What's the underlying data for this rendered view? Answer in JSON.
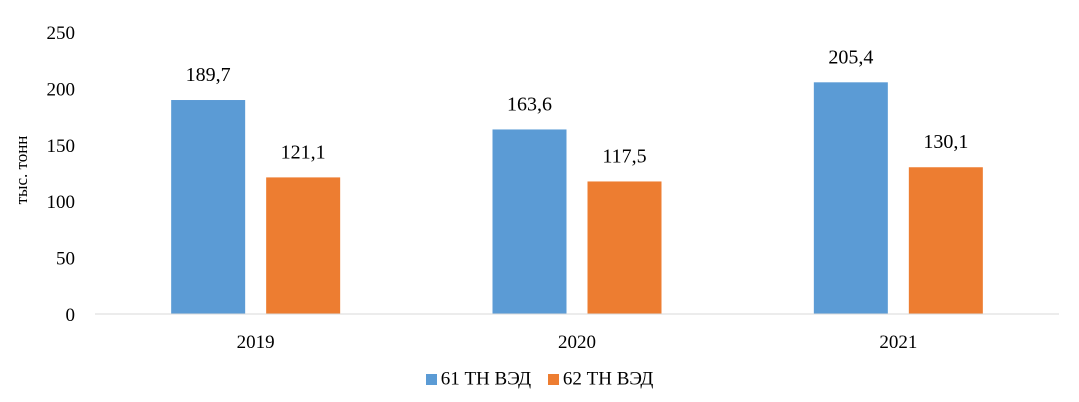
{
  "chart_data": {
    "type": "bar",
    "categories": [
      "2019",
      "2020",
      "2021"
    ],
    "series": [
      {
        "name": "61 ТН ВЭД",
        "values": [
          189.7,
          163.6,
          205.4
        ],
        "labels": [
          "189,7",
          "163,6",
          "205,4"
        ],
        "color": "#5B9BD5"
      },
      {
        "name": "62 ТН ВЭД",
        "values": [
          121.1,
          117.5,
          130.1
        ],
        "labels": [
          "121,1",
          "117,5",
          "130,1"
        ],
        "color": "#ED7D31"
      }
    ],
    "ylabel": "тыс. тонн",
    "ylim": [
      0,
      250
    ],
    "yticks": [
      "0",
      "50",
      "100",
      "150",
      "200",
      "250"
    ],
    "grid": false,
    "legend": "bottom"
  }
}
